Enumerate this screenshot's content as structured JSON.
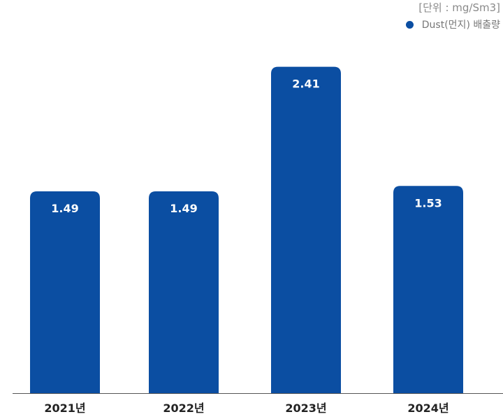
{
  "chart_data": {
    "type": "bar",
    "unit_label": "[단위 : mg/Sm3]",
    "categories": [
      "2021년",
      "2022년",
      "2023년",
      "2024년"
    ],
    "series": [
      {
        "name": "Dust(먼지) 배출량",
        "color": "#0b4ea2",
        "values": [
          1.49,
          1.49,
          2.41,
          1.53
        ]
      }
    ],
    "ylim": [
      0,
      2.8
    ],
    "grid": false,
    "legend_position": "top-right"
  }
}
